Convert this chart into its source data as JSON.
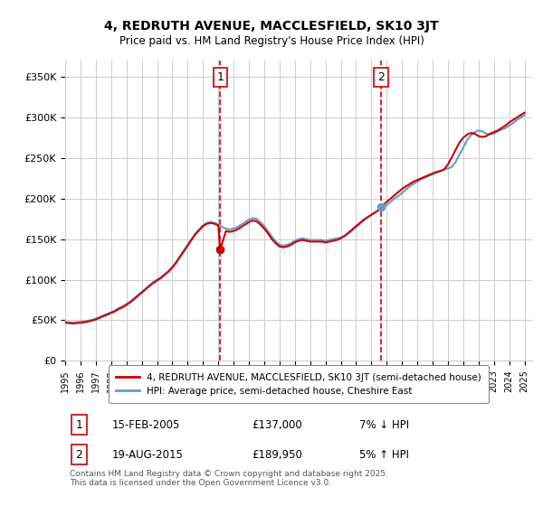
{
  "title": "4, REDRUTH AVENUE, MACCLESFIELD, SK10 3JT",
  "subtitle": "Price paid vs. HM Land Registry's House Price Index (HPI)",
  "ylim": [
    0,
    370000
  ],
  "xlim_start": 1995.0,
  "xlim_end": 2025.5,
  "yticks": [
    0,
    50000,
    100000,
    150000,
    200000,
    250000,
    300000,
    350000
  ],
  "ytick_labels": [
    "£0",
    "£50K",
    "£100K",
    "£150K",
    "£200K",
    "£250K",
    "£300K",
    "£350K"
  ],
  "xticks": [
    1995,
    1996,
    1997,
    1998,
    1999,
    2000,
    2001,
    2002,
    2003,
    2004,
    2005,
    2006,
    2007,
    2008,
    2009,
    2010,
    2011,
    2012,
    2013,
    2014,
    2015,
    2016,
    2017,
    2018,
    2019,
    2020,
    2021,
    2022,
    2023,
    2024,
    2025
  ],
  "transaction1_x": 2005.12,
  "transaction1_y": 137000,
  "transaction2_x": 2015.63,
  "transaction2_y": 189950,
  "vline1_x": 2005.12,
  "vline2_x": 2015.63,
  "red_line_color": "#cc0000",
  "blue_line_color": "#6699cc",
  "vline_color": "#cc0000",
  "background_color": "#ffffff",
  "grid_color": "#cccccc",
  "legend1_text": "4, REDRUTH AVENUE, MACCLESFIELD, SK10 3JT (semi-detached house)",
  "legend2_text": "HPI: Average price, semi-detached house, Cheshire East",
  "note1_label": "1",
  "note1_date": "15-FEB-2005",
  "note1_price": "£137,000",
  "note1_change": "7% ↓ HPI",
  "note2_label": "2",
  "note2_date": "19-AUG-2015",
  "note2_price": "£189,950",
  "note2_change": "5% ↑ HPI",
  "footer": "Contains HM Land Registry data © Crown copyright and database right 2025.\nThis data is licensed under the Open Government Licence v3.0.",
  "hpi_data_x": [
    1995.0,
    1995.25,
    1995.5,
    1995.75,
    1996.0,
    1996.25,
    1996.5,
    1996.75,
    1997.0,
    1997.25,
    1997.5,
    1997.75,
    1998.0,
    1998.25,
    1998.5,
    1998.75,
    1999.0,
    1999.25,
    1999.5,
    1999.75,
    2000.0,
    2000.25,
    2000.5,
    2000.75,
    2001.0,
    2001.25,
    2001.5,
    2001.75,
    2002.0,
    2002.25,
    2002.5,
    2002.75,
    2003.0,
    2003.25,
    2003.5,
    2003.75,
    2004.0,
    2004.25,
    2004.5,
    2004.75,
    2005.0,
    2005.25,
    2005.5,
    2005.75,
    2006.0,
    2006.25,
    2006.5,
    2006.75,
    2007.0,
    2007.25,
    2007.5,
    2007.75,
    2008.0,
    2008.25,
    2008.5,
    2008.75,
    2009.0,
    2009.25,
    2009.5,
    2009.75,
    2010.0,
    2010.25,
    2010.5,
    2010.75,
    2011.0,
    2011.25,
    2011.5,
    2011.75,
    2012.0,
    2012.25,
    2012.5,
    2012.75,
    2013.0,
    2013.25,
    2013.5,
    2013.75,
    2014.0,
    2014.25,
    2014.5,
    2014.75,
    2015.0,
    2015.25,
    2015.5,
    2015.75,
    2016.0,
    2016.25,
    2016.5,
    2016.75,
    2017.0,
    2017.25,
    2017.5,
    2017.75,
    2018.0,
    2018.25,
    2018.5,
    2018.75,
    2019.0,
    2019.25,
    2019.5,
    2019.75,
    2020.0,
    2020.25,
    2020.5,
    2020.75,
    2021.0,
    2021.25,
    2021.5,
    2021.75,
    2022.0,
    2022.25,
    2022.5,
    2022.75,
    2023.0,
    2023.25,
    2023.5,
    2023.75,
    2024.0,
    2024.25,
    2024.5,
    2024.75,
    2025.0
  ],
  "hpi_data_y": [
    48000,
    47500,
    47000,
    47500,
    48000,
    48500,
    49500,
    50500,
    52000,
    54000,
    56000,
    58000,
    60000,
    62000,
    65000,
    67000,
    70000,
    73000,
    77000,
    81000,
    85000,
    89000,
    93000,
    97000,
    100000,
    103000,
    107000,
    111000,
    116000,
    122000,
    129000,
    136000,
    143000,
    150000,
    157000,
    162000,
    167000,
    170000,
    171000,
    170000,
    168000,
    165000,
    163000,
    162000,
    163000,
    165000,
    168000,
    171000,
    174000,
    176000,
    175000,
    171000,
    166000,
    160000,
    153000,
    147000,
    143000,
    142000,
    143000,
    145000,
    148000,
    150000,
    151000,
    150000,
    149000,
    149000,
    149000,
    149000,
    148000,
    149000,
    150000,
    151000,
    152000,
    154000,
    157000,
    161000,
    165000,
    169000,
    173000,
    177000,
    180000,
    183000,
    186000,
    189000,
    192000,
    196000,
    200000,
    203000,
    207000,
    211000,
    215000,
    218000,
    221000,
    224000,
    226000,
    228000,
    230000,
    232000,
    234000,
    236000,
    237000,
    239000,
    245000,
    254000,
    263000,
    272000,
    278000,
    282000,
    284000,
    283000,
    280000,
    279000,
    280000,
    283000,
    285000,
    287000,
    290000,
    293000,
    297000,
    300000,
    303000
  ],
  "price_data_x": [
    1995.0,
    1995.25,
    1995.5,
    1995.75,
    1996.0,
    1996.25,
    1996.5,
    1996.75,
    1997.0,
    1997.25,
    1997.5,
    1997.75,
    1998.0,
    1998.25,
    1998.5,
    1998.75,
    1999.0,
    1999.25,
    1999.5,
    1999.75,
    2000.0,
    2000.25,
    2000.5,
    2000.75,
    2001.0,
    2001.25,
    2001.5,
    2001.75,
    2002.0,
    2002.25,
    2002.5,
    2002.75,
    2003.0,
    2003.25,
    2003.5,
    2003.75,
    2004.0,
    2004.25,
    2004.5,
    2004.75,
    2005.0,
    2005.12,
    2005.5,
    2005.75,
    2006.0,
    2006.25,
    2006.5,
    2006.75,
    2007.0,
    2007.25,
    2007.5,
    2007.75,
    2008.0,
    2008.25,
    2008.5,
    2008.75,
    2009.0,
    2009.25,
    2009.5,
    2009.75,
    2010.0,
    2010.25,
    2010.5,
    2010.75,
    2011.0,
    2011.25,
    2011.5,
    2011.75,
    2012.0,
    2012.25,
    2012.5,
    2012.75,
    2013.0,
    2013.25,
    2013.5,
    2013.75,
    2014.0,
    2014.25,
    2014.5,
    2014.75,
    2015.0,
    2015.25,
    2015.5,
    2015.63,
    2016.0,
    2016.25,
    2016.5,
    2016.75,
    2017.0,
    2017.25,
    2017.5,
    2017.75,
    2018.0,
    2018.25,
    2018.5,
    2018.75,
    2019.0,
    2019.25,
    2019.5,
    2019.75,
    2020.0,
    2020.25,
    2020.5,
    2020.75,
    2021.0,
    2021.25,
    2021.5,
    2021.75,
    2022.0,
    2022.25,
    2022.5,
    2022.75,
    2023.0,
    2023.25,
    2023.5,
    2023.75,
    2024.0,
    2024.25,
    2024.5,
    2024.75,
    2025.0
  ],
  "price_data_y": [
    47000,
    46500,
    46000,
    46500,
    47000,
    47500,
    48500,
    49500,
    51000,
    53000,
    55000,
    57000,
    59000,
    61000,
    64000,
    66000,
    69000,
    72000,
    76000,
    80000,
    84000,
    88000,
    92000,
    96000,
    99000,
    102000,
    106000,
    110000,
    115000,
    121000,
    128000,
    135000,
    142000,
    149000,
    156000,
    161000,
    166000,
    169000,
    170000,
    169000,
    167000,
    137000,
    160000,
    159000,
    160000,
    162000,
    165000,
    168000,
    171000,
    173000,
    172000,
    168000,
    163000,
    157000,
    150000,
    145000,
    141000,
    140000,
    141000,
    143000,
    146000,
    148000,
    149000,
    148000,
    147000,
    147000,
    147000,
    147000,
    146000,
    147000,
    148000,
    149000,
    151000,
    154000,
    158000,
    162000,
    166000,
    170000,
    174000,
    177000,
    180000,
    183000,
    186000,
    189950,
    196000,
    200000,
    204000,
    208000,
    212000,
    215000,
    218000,
    221000,
    223000,
    225000,
    227000,
    229000,
    231000,
    233000,
    234000,
    236000,
    242000,
    251000,
    260000,
    269000,
    275000,
    279000,
    281000,
    280000,
    277000,
    276000,
    277000,
    280000,
    282000,
    284000,
    287000,
    290000,
    294000,
    297000,
    300000,
    303000,
    306000
  ]
}
